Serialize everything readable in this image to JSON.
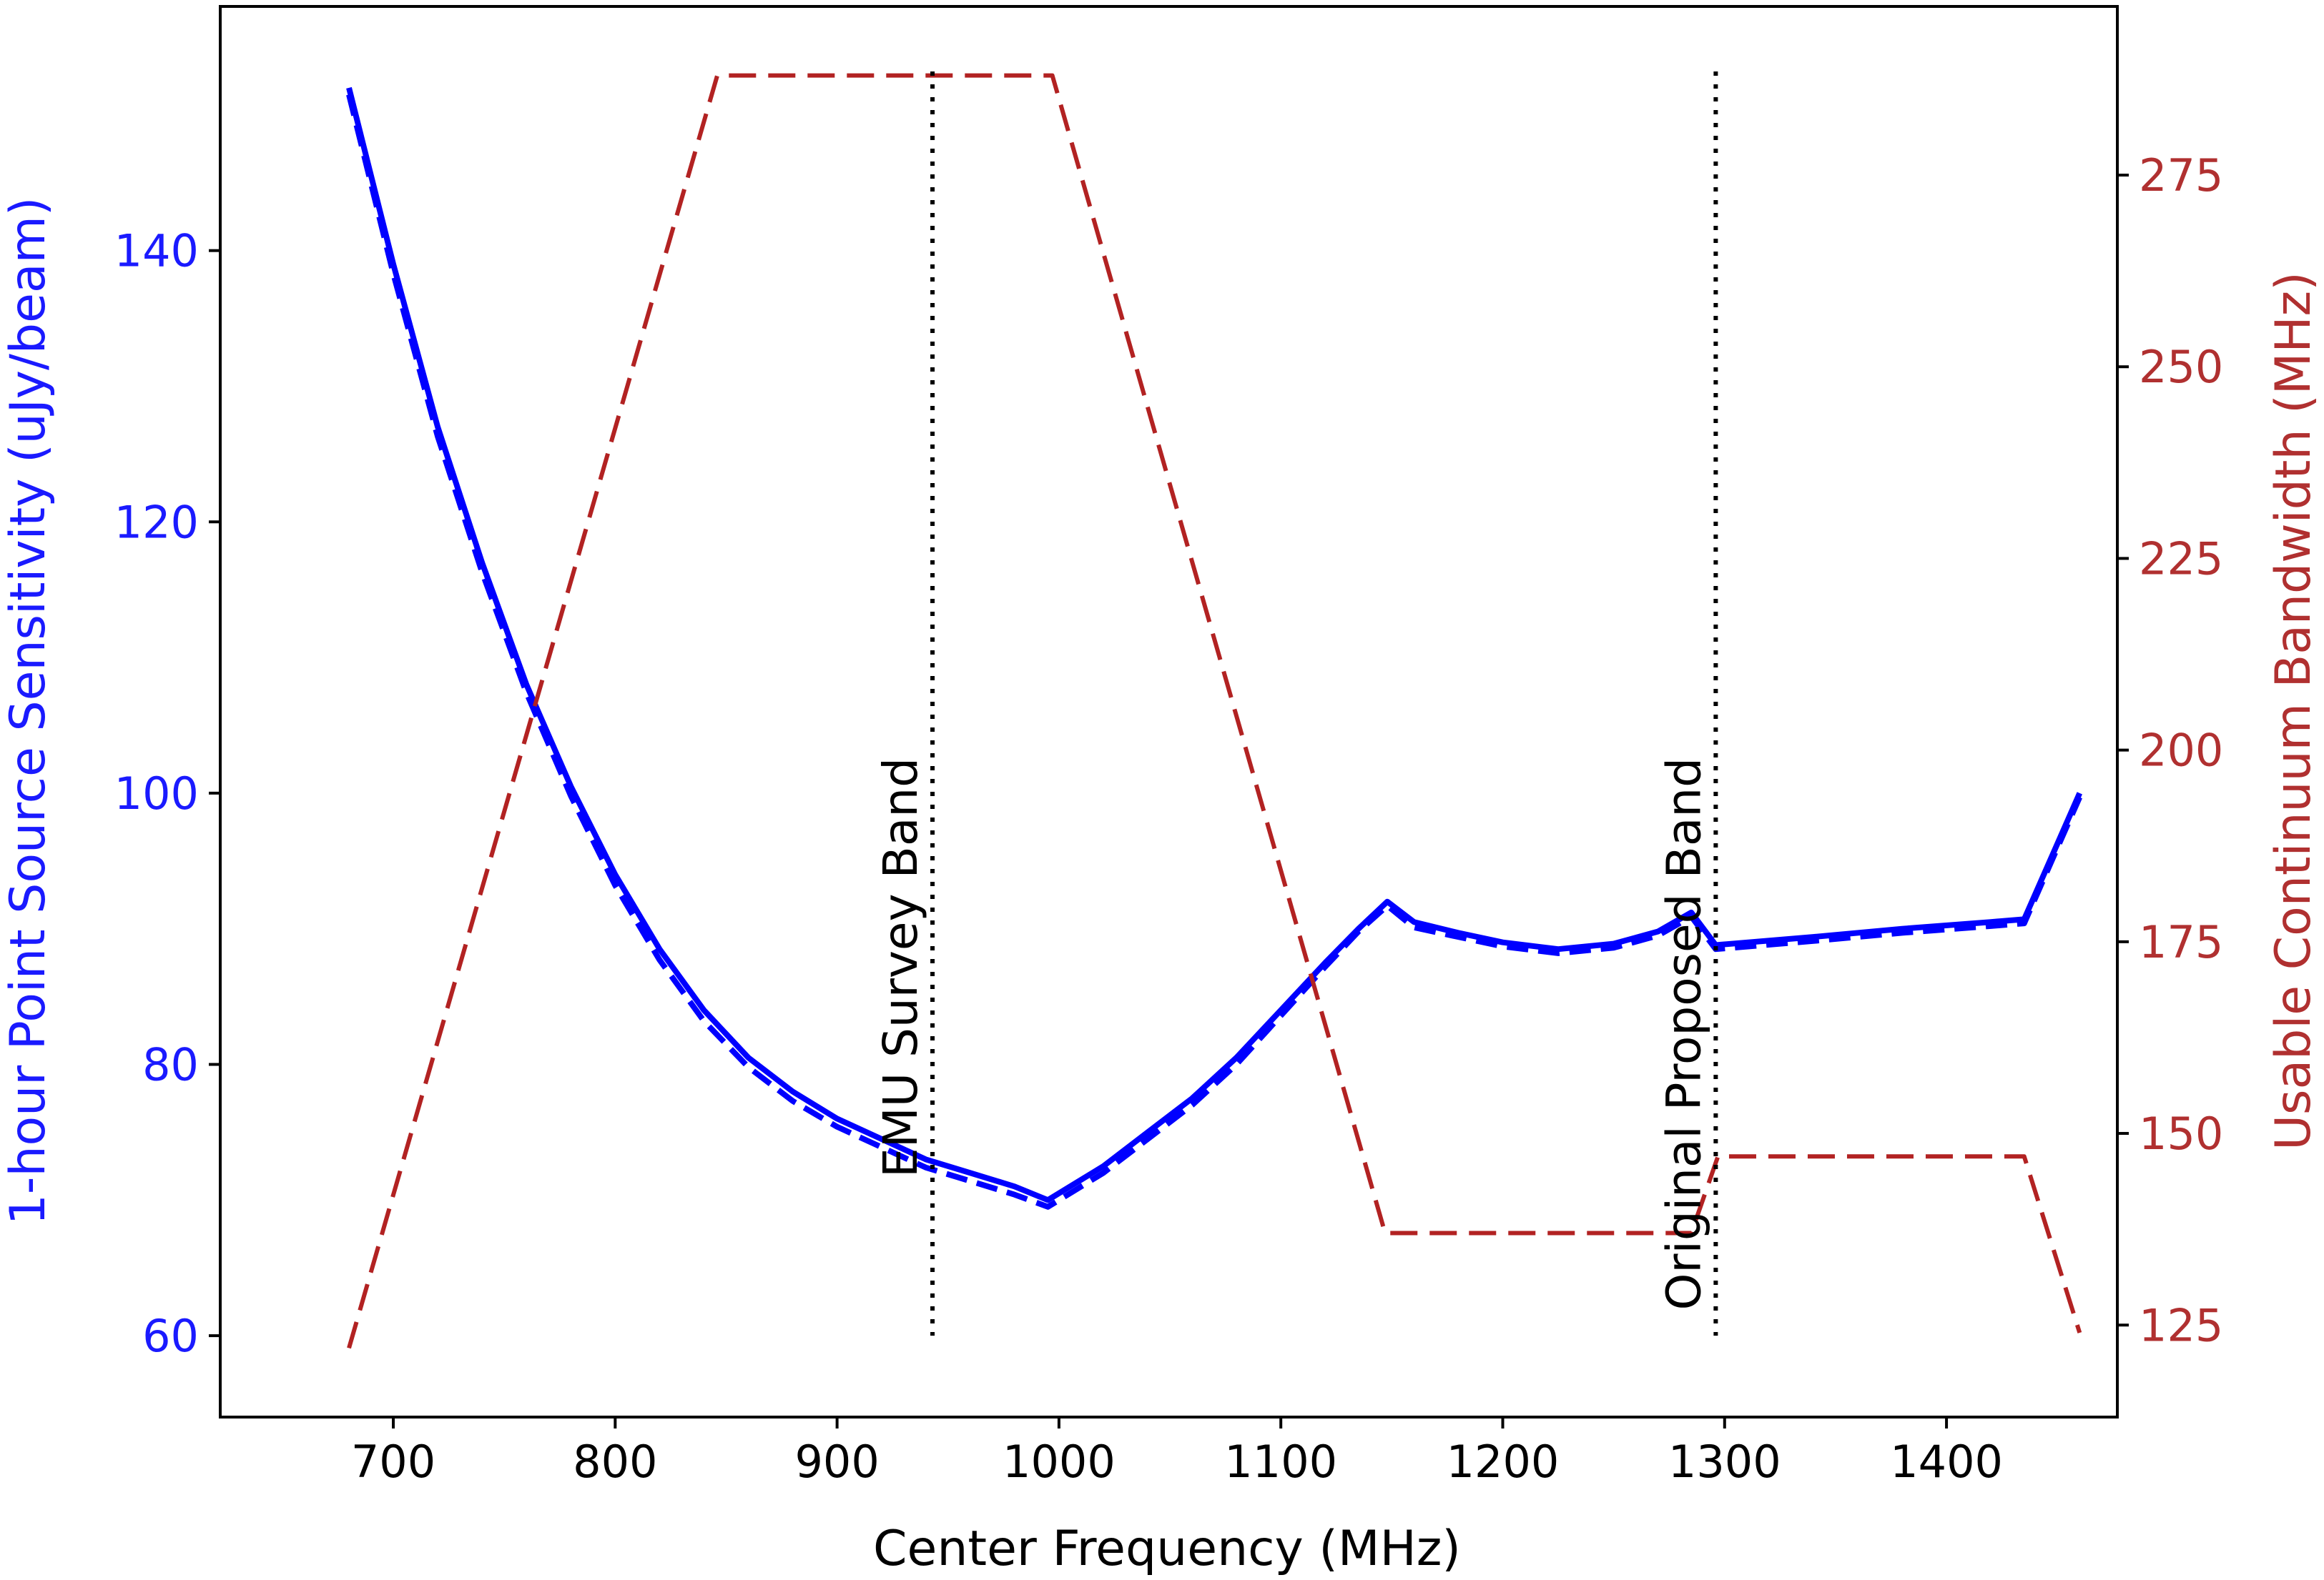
{
  "chart_data": {
    "type": "line",
    "xlabel": "Center Frequency (MHz)",
    "ylabel_left": "1-hour Point Source Sensitivity (uJy/beam)",
    "ylabel_right": "Usable Continuum Bandwidth (MHz)",
    "xlim": [
      622,
      1477
    ],
    "ylim_left": [
      54,
      158
    ],
    "ylim_right": [
      113,
      297
    ],
    "x_ticks": [
      700,
      800,
      900,
      1000,
      1100,
      1200,
      1300,
      1400
    ],
    "y_ticks_left": [
      60,
      80,
      100,
      120,
      140
    ],
    "y_ticks_right": [
      125,
      150,
      175,
      200,
      225,
      250,
      275
    ],
    "grid": false,
    "colors": {
      "sensitivity": "#0000ff",
      "bandwidth": "#b22222",
      "left_axis_text": "#1a1aff",
      "right_axis_text": "#b03030",
      "reference_lines": "#000000"
    },
    "series": [
      {
        "axis": "left",
        "style": "solid",
        "color": "#0000ff",
        "points": [
          [
            680,
            152
          ],
          [
            700,
            139
          ],
          [
            720,
            127
          ],
          [
            740,
            117
          ],
          [
            760,
            108
          ],
          [
            780,
            100.5
          ],
          [
            800,
            94
          ],
          [
            820,
            88.5
          ],
          [
            840,
            84
          ],
          [
            860,
            80.5
          ],
          [
            880,
            78
          ],
          [
            900,
            76
          ],
          [
            920,
            74.5
          ],
          [
            940,
            73
          ],
          [
            960,
            72
          ],
          [
            980,
            71
          ],
          [
            995,
            70
          ],
          [
            1020,
            72.5
          ],
          [
            1040,
            75
          ],
          [
            1060,
            77.5
          ],
          [
            1080,
            80.5
          ],
          [
            1100,
            84
          ],
          [
            1120,
            87.5
          ],
          [
            1135,
            90
          ],
          [
            1148,
            92
          ],
          [
            1160,
            90.5
          ],
          [
            1180,
            89.7
          ],
          [
            1200,
            89
          ],
          [
            1225,
            88.5
          ],
          [
            1250,
            88.9
          ],
          [
            1270,
            89.8
          ],
          [
            1285,
            91.2
          ],
          [
            1296,
            88.8
          ],
          [
            1340,
            89.4
          ],
          [
            1380,
            90
          ],
          [
            1420,
            90.5
          ],
          [
            1435,
            90.7
          ],
          [
            1460,
            100
          ]
        ]
      },
      {
        "axis": "left",
        "style": "dashed",
        "color": "#0000ff",
        "points": [
          [
            680,
            151.5
          ],
          [
            700,
            138.3
          ],
          [
            720,
            126.3
          ],
          [
            740,
            116.3
          ],
          [
            760,
            107.4
          ],
          [
            780,
            99.8
          ],
          [
            800,
            93.2
          ],
          [
            820,
            87.7
          ],
          [
            840,
            83.2
          ],
          [
            860,
            79.8
          ],
          [
            880,
            77.3
          ],
          [
            900,
            75.4
          ],
          [
            920,
            73.9
          ],
          [
            940,
            72.4
          ],
          [
            960,
            71.4
          ],
          [
            980,
            70.4
          ],
          [
            995,
            69.5
          ],
          [
            1020,
            72
          ],
          [
            1040,
            74.5
          ],
          [
            1060,
            77
          ],
          [
            1080,
            80
          ],
          [
            1100,
            83.6
          ],
          [
            1120,
            87.2
          ],
          [
            1135,
            89.8
          ],
          [
            1148,
            91.7
          ],
          [
            1160,
            90.1
          ],
          [
            1180,
            89.4
          ],
          [
            1200,
            88.7
          ],
          [
            1225,
            88.2
          ],
          [
            1250,
            88.6
          ],
          [
            1270,
            89.5
          ],
          [
            1285,
            90.9
          ],
          [
            1296,
            88.5
          ],
          [
            1340,
            89.1
          ],
          [
            1380,
            89.7
          ],
          [
            1420,
            90.2
          ],
          [
            1435,
            90.4
          ],
          [
            1460,
            99.7
          ]
        ]
      },
      {
        "axis": "right",
        "style": "dashed",
        "color": "#b22222",
        "points": [
          [
            680,
            122
          ],
          [
            846,
            288
          ],
          [
            997,
            288
          ],
          [
            1147,
            137
          ],
          [
            1285,
            137
          ],
          [
            1297,
            147
          ],
          [
            1435,
            147
          ],
          [
            1460,
            124
          ]
        ]
      }
    ],
    "reference_lines": [
      {
        "x": 943,
        "label": "EMU Survey Band"
      },
      {
        "x": 1296,
        "label": "Original Proposed Band"
      }
    ]
  }
}
